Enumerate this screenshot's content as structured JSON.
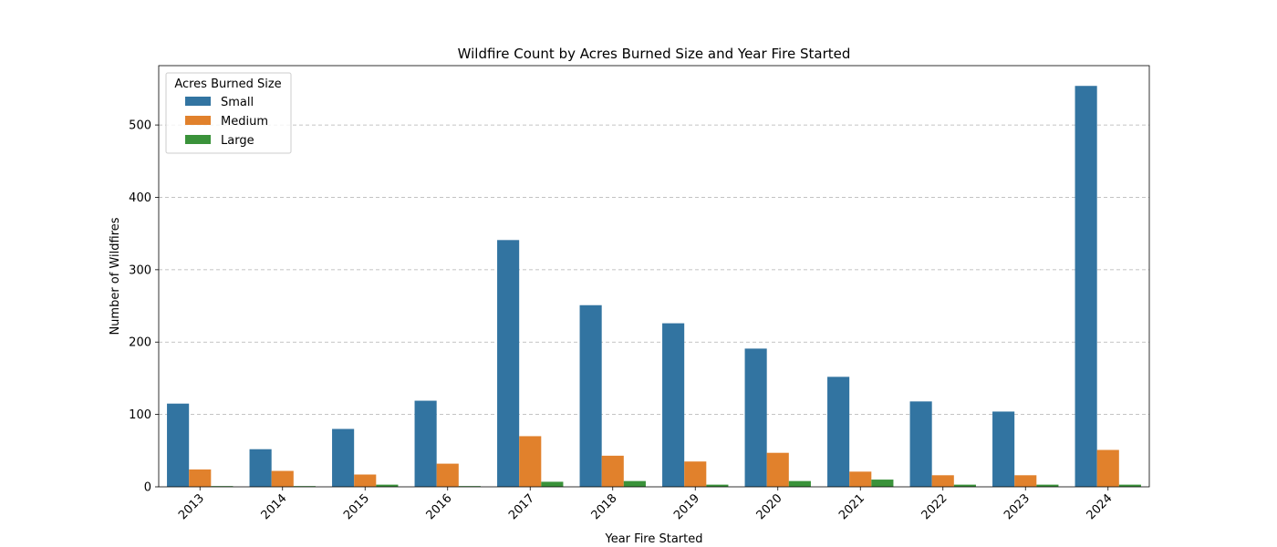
{
  "chart_data": {
    "type": "bar",
    "title": "Wildfire Count by Acres Burned Size and Year Fire Started",
    "xlabel": "Year Fire Started",
    "ylabel": "Number of Wildfires",
    "categories": [
      "2013",
      "2014",
      "2015",
      "2016",
      "2017",
      "2018",
      "2019",
      "2020",
      "2021",
      "2022",
      "2023",
      "2024"
    ],
    "series": [
      {
        "name": "Small",
        "color": "#3274a1",
        "values": [
          115,
          52,
          80,
          119,
          341,
          251,
          226,
          191,
          152,
          118,
          104,
          554
        ]
      },
      {
        "name": "Medium",
        "color": "#e1812c",
        "values": [
          24,
          22,
          17,
          32,
          70,
          43,
          35,
          47,
          21,
          16,
          16,
          51
        ]
      },
      {
        "name": "Large",
        "color": "#3a923a",
        "values": [
          1,
          1,
          3,
          1,
          7,
          8,
          3,
          8,
          10,
          3,
          3,
          3
        ]
      }
    ],
    "ylim": [
      0,
      582
    ],
    "yticks": [
      0,
      100,
      200,
      300,
      400,
      500
    ],
    "grid": "y-axis dashed",
    "legend": {
      "title": "Acres Burned Size",
      "placement": "top-left"
    }
  }
}
